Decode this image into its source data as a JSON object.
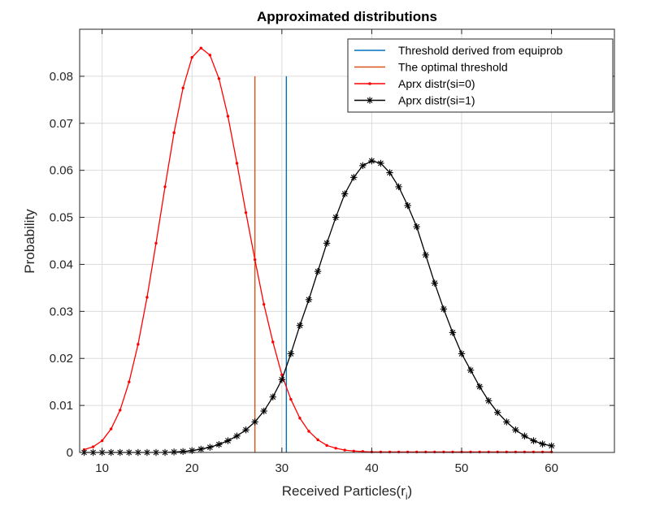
{
  "chart_data": {
    "type": "line",
    "title": "Approximated distributions",
    "xlabel": "Received  Particles(r",
    "xlabel_subscript": "i",
    "xlabel_suffix": ")",
    "ylabel": "Probability",
    "xlim": [
      7.5,
      67
    ],
    "ylim": [
      0,
      0.09
    ],
    "xticks": [
      10,
      20,
      30,
      40,
      50,
      60
    ],
    "yticks": [
      0,
      0.01,
      0.02,
      0.03,
      0.04,
      0.05,
      0.06,
      0.07,
      0.08
    ],
    "ytick_labels": [
      "0",
      "0.01",
      "0.02",
      "0.03",
      "0.04",
      "0.05",
      "0.06",
      "0.07",
      "0.08"
    ],
    "grid": true,
    "legend_position": "top-right",
    "series": [
      {
        "name": "Threshold derived from equiprob",
        "kind": "vline",
        "color": "#0072BD",
        "x": [
          30.5,
          30.5
        ],
        "y": [
          0,
          0.08
        ]
      },
      {
        "name": "The optimal threshold",
        "kind": "vline",
        "color": "#D95319",
        "x": [
          27,
          27
        ],
        "y": [
          0,
          0.08
        ]
      },
      {
        "name": "Aprx distr(si=0)",
        "kind": "line",
        "marker": "dot",
        "color": "#FF0000",
        "x": [
          8,
          9,
          10,
          11,
          12,
          13,
          14,
          15,
          16,
          17,
          18,
          19,
          20,
          21,
          22,
          23,
          24,
          25,
          26,
          27,
          28,
          29,
          30,
          31,
          32,
          33,
          34,
          35,
          36,
          37,
          38,
          39,
          40,
          41,
          42,
          43,
          44,
          45,
          46,
          47,
          48,
          49,
          50,
          51,
          52,
          53,
          54,
          55,
          56,
          57,
          58,
          59,
          60
        ],
        "y": [
          0.0006,
          0.0012,
          0.0025,
          0.005,
          0.009,
          0.015,
          0.023,
          0.033,
          0.0445,
          0.0565,
          0.068,
          0.0775,
          0.084,
          0.086,
          0.0845,
          0.0795,
          0.0715,
          0.0615,
          0.051,
          0.041,
          0.0315,
          0.0235,
          0.0165,
          0.0113,
          0.0073,
          0.0045,
          0.0027,
          0.0015,
          0.0009,
          0.0005,
          0.0003,
          0.0002,
          0.0001,
          0.0001,
          0.0001,
          0.0001,
          0.0001,
          0.0001,
          0.0001,
          0.0001,
          0.0001,
          0.0001,
          0.0001,
          0.0001,
          0.0001,
          0.0001,
          0.0001,
          0.0001,
          0.0001,
          0.0001,
          0.0001,
          0.0001,
          0.0001
        ]
      },
      {
        "name": "Aprx distr(si=1)",
        "kind": "line",
        "marker": "asterisk",
        "color": "#000000",
        "x": [
          8,
          9,
          10,
          11,
          12,
          13,
          14,
          15,
          16,
          17,
          18,
          19,
          20,
          21,
          22,
          23,
          24,
          25,
          26,
          27,
          28,
          29,
          30,
          31,
          32,
          33,
          34,
          35,
          36,
          37,
          38,
          39,
          40,
          41,
          42,
          43,
          44,
          45,
          46,
          47,
          48,
          49,
          50,
          51,
          52,
          53,
          54,
          55,
          56,
          57,
          58,
          59,
          60
        ],
        "y": [
          0,
          0,
          0,
          0,
          0,
          0,
          0,
          0,
          0,
          0,
          0.0001,
          0.0002,
          0.0004,
          0.0007,
          0.0011,
          0.0017,
          0.0025,
          0.0035,
          0.0048,
          0.0065,
          0.0088,
          0.0118,
          0.0155,
          0.021,
          0.027,
          0.0325,
          0.0385,
          0.0445,
          0.05,
          0.055,
          0.0585,
          0.061,
          0.062,
          0.0615,
          0.0595,
          0.0565,
          0.0525,
          0.048,
          0.042,
          0.036,
          0.0305,
          0.0255,
          0.021,
          0.0175,
          0.014,
          0.011,
          0.0085,
          0.0065,
          0.0048,
          0.0035,
          0.0025,
          0.0018,
          0.0014
        ]
      }
    ]
  }
}
